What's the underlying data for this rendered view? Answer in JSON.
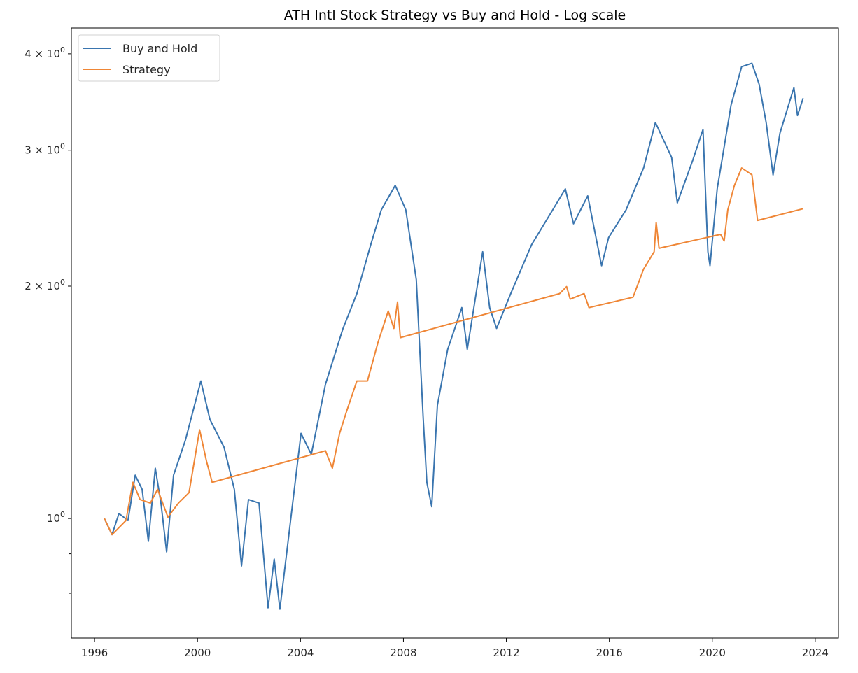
{
  "chart_data": {
    "type": "line",
    "title": "ATH Intl Stock Strategy vs Buy and Hold - Log scale",
    "xlabel": "",
    "ylabel": "",
    "xlim": [
      1995.1,
      2024.9
    ],
    "ylim": [
      0.7,
      4.32
    ],
    "yscale": "log",
    "grid": false,
    "legend_position": "top-left",
    "x_ticks": [
      {
        "value": 1996,
        "label": "1996"
      },
      {
        "value": 2000,
        "label": "2000"
      },
      {
        "value": 2004,
        "label": "2004"
      },
      {
        "value": 2008,
        "label": "2008"
      },
      {
        "value": 2012,
        "label": "2012"
      },
      {
        "value": 2016,
        "label": "2016"
      },
      {
        "value": 2020,
        "label": "2020"
      },
      {
        "value": 2024,
        "label": "2024"
      }
    ],
    "y_ticks": [
      {
        "value": 4,
        "label": "4 × 10",
        "exp": "0"
      },
      {
        "value": 3,
        "label": "3 × 10",
        "exp": "0"
      },
      {
        "value": 2,
        "label": "2 × 10",
        "exp": "0"
      },
      {
        "value": 1,
        "label": "10",
        "exp": "0"
      }
    ],
    "y_minor_ticks": [
      0.8,
      0.9
    ],
    "series": [
      {
        "name": "Buy and Hold",
        "color": "#3a75af",
        "x": [
          1996.38,
          1996.68,
          1996.95,
          1997.3,
          1997.58,
          1997.85,
          1998.09,
          1998.36,
          1998.58,
          1998.8,
          1999.07,
          1999.53,
          2000.13,
          2000.48,
          2001.03,
          2001.43,
          2001.71,
          2001.98,
          2002.39,
          2002.74,
          2002.98,
          2003.2,
          2003.47,
          2004.02,
          2004.42,
          2004.97,
          2005.65,
          2006.19,
          2006.73,
          2007.14,
          2007.68,
          2008.09,
          2008.5,
          2008.77,
          2008.91,
          2009.1,
          2009.32,
          2009.72,
          2010.27,
          2010.48,
          2011.08,
          2011.35,
          2011.62,
          2012.17,
          2012.98,
          2013.8,
          2014.29,
          2014.61,
          2015.16,
          2015.7,
          2015.97,
          2016.65,
          2017.33,
          2017.79,
          2018.42,
          2018.64,
          2019.23,
          2019.64,
          2019.83,
          2019.91,
          2020.19,
          2020.73,
          2021.14,
          2021.54,
          2021.82,
          2022.09,
          2022.36,
          2022.63,
          2023.17,
          2023.31,
          2023.53
        ],
        "y": [
          1.0,
          0.953,
          1.015,
          0.994,
          1.138,
          1.091,
          0.934,
          1.162,
          1.047,
          0.905,
          1.138,
          1.263,
          1.507,
          1.344,
          1.237,
          1.091,
          0.868,
          1.058,
          1.047,
          0.766,
          0.886,
          0.763,
          0.905,
          1.289,
          1.211,
          1.492,
          1.762,
          1.956,
          2.263,
          2.511,
          2.701,
          2.511,
          2.039,
          1.344,
          1.114,
          1.036,
          1.401,
          1.656,
          1.876,
          1.656,
          2.216,
          1.876,
          1.763,
          1.956,
          2.263,
          2.511,
          2.673,
          2.409,
          2.618,
          2.126,
          2.311,
          2.511,
          2.845,
          3.259,
          2.936,
          2.564,
          2.906,
          3.191,
          2.216,
          2.126,
          2.673,
          3.433,
          3.849,
          3.889,
          3.653,
          3.259,
          2.787,
          3.158,
          3.616,
          3.327,
          3.504
        ]
      },
      {
        "name": "Strategy",
        "color": "#ef8636",
        "x": [
          1996.38,
          1996.68,
          1997.22,
          1997.49,
          1997.77,
          1998.17,
          1998.45,
          1998.85,
          1999.26,
          1999.67,
          2000.08,
          2000.35,
          2000.57,
          2004.97,
          2005.24,
          2005.52,
          2005.78,
          2006.19,
          2006.6,
          2007.01,
          2007.41,
          2007.63,
          2007.77,
          2007.88,
          2014.07,
          2014.34,
          2014.48,
          2015.02,
          2015.21,
          2016.92,
          2017.33,
          2017.74,
          2017.82,
          2017.93,
          2020.32,
          2020.46,
          2020.6,
          2020.86,
          2021.14,
          2021.54,
          2021.76,
          2023.53
        ],
        "y": [
          1.0,
          0.953,
          0.994,
          1.114,
          1.058,
          1.047,
          1.091,
          1.004,
          1.047,
          1.08,
          1.303,
          1.186,
          1.114,
          1.224,
          1.162,
          1.289,
          1.373,
          1.507,
          1.507,
          1.69,
          1.857,
          1.763,
          1.908,
          1.715,
          1.956,
          1.997,
          1.924,
          1.956,
          1.876,
          1.935,
          2.104,
          2.216,
          2.419,
          2.239,
          2.334,
          2.288,
          2.511,
          2.701,
          2.845,
          2.788,
          2.433,
          2.52
        ]
      }
    ]
  }
}
